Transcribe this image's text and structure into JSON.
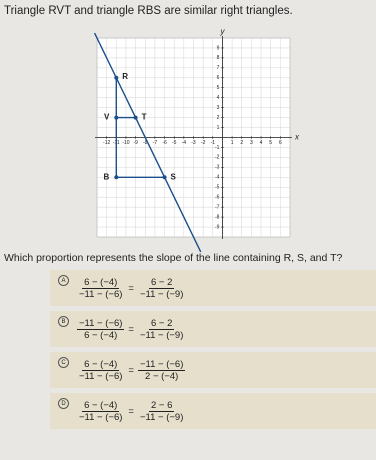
{
  "header": {
    "title": "Triangle RVT and triangle RBS are similar right triangles."
  },
  "graph": {
    "x_axis_label": "x",
    "y_axis_label": "y",
    "xlim": [
      -13,
      7
    ],
    "ylim": [
      -10,
      10
    ],
    "xticks": [
      -12,
      -11,
      -10,
      -9,
      -8,
      -7,
      -6,
      -5,
      -4,
      -3,
      -2,
      -1,
      1,
      2,
      3,
      4,
      5,
      6
    ],
    "yticks": [
      -9,
      -8,
      -7,
      -6,
      -5,
      -4,
      -3,
      -2,
      -1,
      1,
      2,
      3,
      4,
      5,
      6,
      7,
      8,
      9
    ],
    "points": [
      {
        "label": "R",
        "x": -11,
        "y": 6
      },
      {
        "label": "V",
        "x": -11,
        "y": 2
      },
      {
        "label": "T",
        "x": -9,
        "y": 2
      },
      {
        "label": "B",
        "x": -11,
        "y": -4
      },
      {
        "label": "S",
        "x": -6,
        "y": -4
      }
    ]
  },
  "question": "Which proportion represents the slope of the line containing R, S, and T?",
  "choices": [
    {
      "letter": "A",
      "left": {
        "num": "6 − (−4)",
        "den": "−11 − (−6)"
      },
      "sign": "=",
      "right": {
        "num": "6 − 2",
        "den": "−11 − (−9)"
      }
    },
    {
      "letter": "B",
      "left": {
        "num": "−11 − (−6)",
        "den": "6 − (−4)"
      },
      "sign": "=",
      "right": {
        "num": "6 − 2",
        "den": "−11 − (−9)"
      }
    },
    {
      "letter": "C",
      "left": {
        "num": "6 − (−4)",
        "den": "−11 − (−6)"
      },
      "sign": "=",
      "right": {
        "num": "−11 − (−6)",
        "den": "2 − (−4)"
      }
    },
    {
      "letter": "D",
      "left": {
        "num": "6 − (−4)",
        "den": "−11 − (−6)"
      },
      "sign": "=",
      "right": {
        "num": "2 − 6",
        "den": "−11 − (−9)"
      }
    }
  ]
}
